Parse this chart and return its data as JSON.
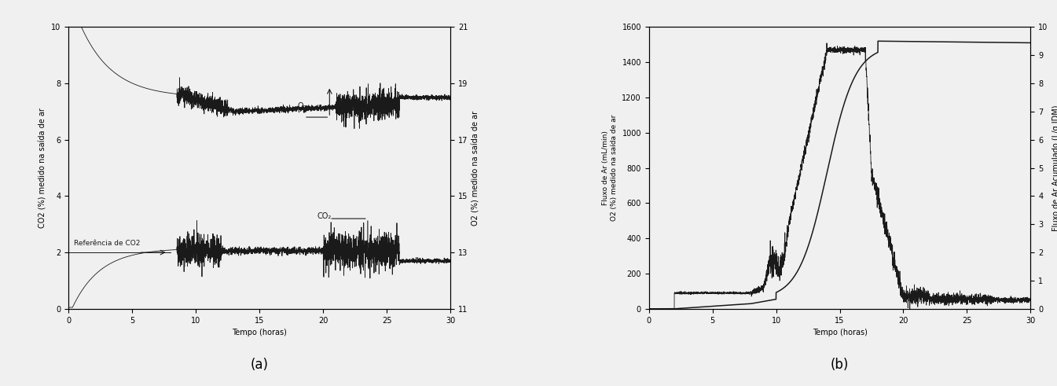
{
  "panel_a": {
    "xlabel": "Tempo (horas)",
    "ylabel_left": "CO2 (%) medido na saída de ar",
    "ylabel_right": "O2 (%) medido na saída de ar",
    "xlim": [
      0,
      30
    ],
    "ylim_left": [
      0,
      10
    ],
    "ylim_right": [
      11,
      21
    ],
    "xticks": [
      0,
      5,
      10,
      15,
      20,
      25,
      30
    ],
    "yticks_left": [
      0,
      2,
      4,
      6,
      8,
      10
    ],
    "yticks_right": [
      11,
      13,
      15,
      17,
      19,
      21
    ],
    "label_a": "(a)"
  },
  "panel_b": {
    "xlabel": "Tempo (horas)",
    "ylabel_left": "Fluxo de Ar (mL/min)\nO2 (%) medido na saída de ar",
    "ylabel_right": "Fluxo de Ar Acumulado (L/g IDM)",
    "xlim": [
      0,
      30
    ],
    "ylim_left": [
      0,
      1600
    ],
    "ylim_right": [
      0,
      10
    ],
    "xticks": [
      0,
      5,
      10,
      15,
      20,
      25,
      30
    ],
    "yticks_left": [
      0,
      200,
      400,
      600,
      800,
      1000,
      1200,
      1400,
      1600
    ],
    "yticks_right": [
      0,
      1,
      2,
      3,
      4,
      5,
      6,
      7,
      8,
      9,
      10
    ],
    "label_b": "(b)"
  },
  "background_color": "#f0f0f0",
  "line_color": "#1a1a1a",
  "fontsize_label": 7,
  "fontsize_tick": 7,
  "fontsize_annotation": 7,
  "fontsize_panel_label": 12
}
